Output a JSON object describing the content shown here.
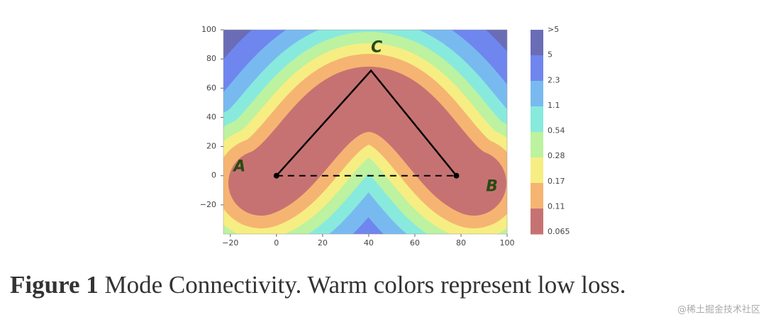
{
  "chart_data": {
    "type": "contour",
    "xlim": [
      -23,
      100
    ],
    "ylim": [
      -40,
      100
    ],
    "xticks": [
      {
        "value": -20,
        "label": "−20"
      },
      0,
      20,
      40,
      60,
      80,
      100
    ],
    "yticks": [
      100,
      80,
      60,
      40,
      20,
      0,
      {
        "value": -20,
        "label": "−20"
      }
    ],
    "colorbar": {
      "levels": [
        ">5",
        5,
        2.3,
        1.1,
        0.54,
        0.28,
        0.17,
        0.11,
        0.065
      ],
      "colors": [
        "#6a6db6",
        "#6f86ee",
        "#78baf0",
        "#88eadc",
        "#bdf2a0",
        "#f6ee82",
        "#f6b472",
        "#c77272"
      ]
    },
    "points": [
      {
        "name": "A",
        "x": 0,
        "y": 0
      },
      {
        "name": "B",
        "x": 78,
        "y": 0
      },
      {
        "name": "C",
        "x": 41,
        "y": 72
      }
    ]
  },
  "caption": {
    "label": "Figure 1",
    "text": "Mode Connectivity. Warm colors represent low loss."
  },
  "watermark": "@稀土掘金技术社区"
}
